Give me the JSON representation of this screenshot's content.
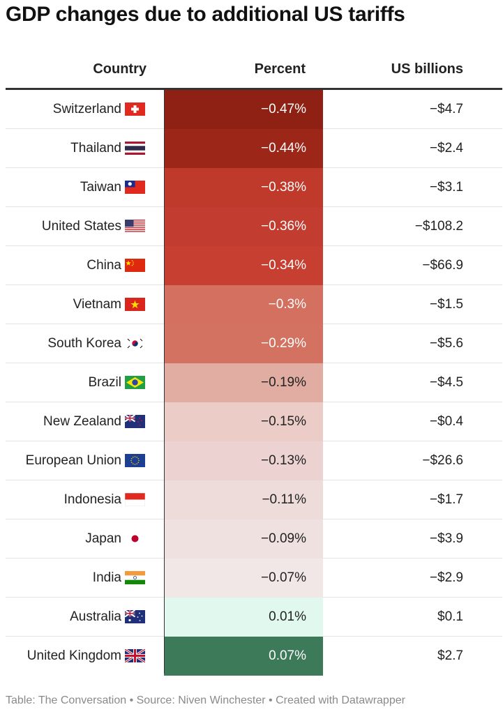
{
  "title": "GDP changes due to additional US tariffs",
  "columns": {
    "country": "Country",
    "percent": "Percent",
    "usd": "US billions"
  },
  "rows": [
    {
      "country": "Switzerland",
      "flag": "switzerland-flag-icon",
      "percent": "−0.47%",
      "usd": "−$4.7"
    },
    {
      "country": "Thailand",
      "flag": "thailand-flag-icon",
      "percent": "−0.44%",
      "usd": "−$2.4"
    },
    {
      "country": "Taiwan",
      "flag": "taiwan-flag-icon",
      "percent": "−0.38%",
      "usd": "−$3.1"
    },
    {
      "country": "United States",
      "flag": "united-states-flag-icon",
      "percent": "−0.36%",
      "usd": "−$108.2"
    },
    {
      "country": "China",
      "flag": "china-flag-icon",
      "percent": "−0.34%",
      "usd": "−$66.9"
    },
    {
      "country": "Vietnam",
      "flag": "vietnam-flag-icon",
      "percent": "−0.3%",
      "usd": "−$1.5"
    },
    {
      "country": "South Korea",
      "flag": "south-korea-flag-icon",
      "percent": "−0.29%",
      "usd": "−$5.6"
    },
    {
      "country": "Brazil",
      "flag": "brazil-flag-icon",
      "percent": "−0.19%",
      "usd": "−$4.5"
    },
    {
      "country": "New Zealand",
      "flag": "new-zealand-flag-icon",
      "percent": "−0.15%",
      "usd": "−$0.4"
    },
    {
      "country": "European Union",
      "flag": "european-union-flag-icon",
      "percent": "−0.13%",
      "usd": "−$26.6"
    },
    {
      "country": "Indonesia",
      "flag": "indonesia-flag-icon",
      "percent": "−0.11%",
      "usd": "−$1.7"
    },
    {
      "country": "Japan",
      "flag": "japan-flag-icon",
      "percent": "−0.09%",
      "usd": "−$3.9"
    },
    {
      "country": "India",
      "flag": "india-flag-icon",
      "percent": "−0.07%",
      "usd": "−$2.9"
    },
    {
      "country": "Australia",
      "flag": "australia-flag-icon",
      "percent": "0.01%",
      "usd": "$0.1"
    },
    {
      "country": "United Kingdom",
      "flag": "united-kingdom-flag-icon",
      "percent": "0.07%",
      "usd": "$2.7"
    }
  ],
  "heat_colors": [
    "#8e2014",
    "#9c2618",
    "#c03a2b",
    "#c23d2f",
    "#c63f31",
    "#d4705f",
    "#d47262",
    "#e1aca2",
    "#ebccc7",
    "#ecd3d2",
    "#eedcdb",
    "#efe1e0",
    "#f1e7e6",
    "#e1f8ef",
    "#3c7a59"
  ],
  "light_text_color": "#ffffff",
  "dark_text_color": "#222222",
  "footer": "Table: The Conversation • Source: Niven Winchester • Created with Datawrapper",
  "chart_data": {
    "type": "table",
    "title": "GDP changes due to additional US tariffs",
    "columns": [
      "Country",
      "Percent",
      "US billions"
    ],
    "categories": [
      "Switzerland",
      "Thailand",
      "Taiwan",
      "United States",
      "China",
      "Vietnam",
      "South Korea",
      "Brazil",
      "New Zealand",
      "European Union",
      "Indonesia",
      "Japan",
      "India",
      "Australia",
      "United Kingdom"
    ],
    "series": [
      {
        "name": "Percent",
        "values": [
          -0.47,
          -0.44,
          -0.38,
          -0.36,
          -0.34,
          -0.3,
          -0.29,
          -0.19,
          -0.15,
          -0.13,
          -0.11,
          -0.09,
          -0.07,
          0.01,
          0.07
        ]
      },
      {
        "name": "US billions",
        "values": [
          -4.7,
          -2.4,
          -3.1,
          -108.2,
          -66.9,
          -1.5,
          -5.6,
          -4.5,
          -0.4,
          -26.6,
          -1.7,
          -3.9,
          -2.9,
          0.1,
          2.7
        ]
      }
    ]
  }
}
